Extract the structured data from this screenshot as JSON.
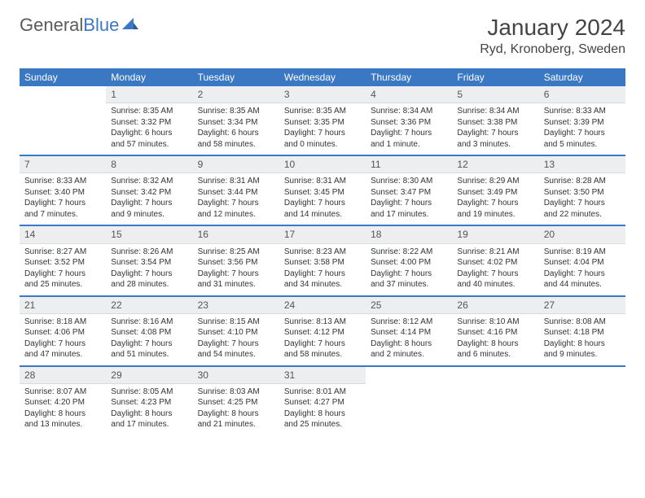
{
  "logo": {
    "part1": "General",
    "part2": "Blue"
  },
  "title": "January 2024",
  "location": "Ryd, Kronoberg, Sweden",
  "weekdays": [
    "Sunday",
    "Monday",
    "Tuesday",
    "Wednesday",
    "Thursday",
    "Friday",
    "Saturday"
  ],
  "colors": {
    "header_bg": "#3b78c4",
    "header_text": "#ffffff",
    "daynum_bg": "#eceeef",
    "row_sep": "#3b78c4",
    "logo_gray": "#5a5a5a",
    "logo_blue": "#3b78c4"
  },
  "weeks": [
    [
      {
        "n": "",
        "lines": []
      },
      {
        "n": "1",
        "lines": [
          "Sunrise: 8:35 AM",
          "Sunset: 3:32 PM",
          "Daylight: 6 hours",
          "and 57 minutes."
        ]
      },
      {
        "n": "2",
        "lines": [
          "Sunrise: 8:35 AM",
          "Sunset: 3:34 PM",
          "Daylight: 6 hours",
          "and 58 minutes."
        ]
      },
      {
        "n": "3",
        "lines": [
          "Sunrise: 8:35 AM",
          "Sunset: 3:35 PM",
          "Daylight: 7 hours",
          "and 0 minutes."
        ]
      },
      {
        "n": "4",
        "lines": [
          "Sunrise: 8:34 AM",
          "Sunset: 3:36 PM",
          "Daylight: 7 hours",
          "and 1 minute."
        ]
      },
      {
        "n": "5",
        "lines": [
          "Sunrise: 8:34 AM",
          "Sunset: 3:38 PM",
          "Daylight: 7 hours",
          "and 3 minutes."
        ]
      },
      {
        "n": "6",
        "lines": [
          "Sunrise: 8:33 AM",
          "Sunset: 3:39 PM",
          "Daylight: 7 hours",
          "and 5 minutes."
        ]
      }
    ],
    [
      {
        "n": "7",
        "lines": [
          "Sunrise: 8:33 AM",
          "Sunset: 3:40 PM",
          "Daylight: 7 hours",
          "and 7 minutes."
        ]
      },
      {
        "n": "8",
        "lines": [
          "Sunrise: 8:32 AM",
          "Sunset: 3:42 PM",
          "Daylight: 7 hours",
          "and 9 minutes."
        ]
      },
      {
        "n": "9",
        "lines": [
          "Sunrise: 8:31 AM",
          "Sunset: 3:44 PM",
          "Daylight: 7 hours",
          "and 12 minutes."
        ]
      },
      {
        "n": "10",
        "lines": [
          "Sunrise: 8:31 AM",
          "Sunset: 3:45 PM",
          "Daylight: 7 hours",
          "and 14 minutes."
        ]
      },
      {
        "n": "11",
        "lines": [
          "Sunrise: 8:30 AM",
          "Sunset: 3:47 PM",
          "Daylight: 7 hours",
          "and 17 minutes."
        ]
      },
      {
        "n": "12",
        "lines": [
          "Sunrise: 8:29 AM",
          "Sunset: 3:49 PM",
          "Daylight: 7 hours",
          "and 19 minutes."
        ]
      },
      {
        "n": "13",
        "lines": [
          "Sunrise: 8:28 AM",
          "Sunset: 3:50 PM",
          "Daylight: 7 hours",
          "and 22 minutes."
        ]
      }
    ],
    [
      {
        "n": "14",
        "lines": [
          "Sunrise: 8:27 AM",
          "Sunset: 3:52 PM",
          "Daylight: 7 hours",
          "and 25 minutes."
        ]
      },
      {
        "n": "15",
        "lines": [
          "Sunrise: 8:26 AM",
          "Sunset: 3:54 PM",
          "Daylight: 7 hours",
          "and 28 minutes."
        ]
      },
      {
        "n": "16",
        "lines": [
          "Sunrise: 8:25 AM",
          "Sunset: 3:56 PM",
          "Daylight: 7 hours",
          "and 31 minutes."
        ]
      },
      {
        "n": "17",
        "lines": [
          "Sunrise: 8:23 AM",
          "Sunset: 3:58 PM",
          "Daylight: 7 hours",
          "and 34 minutes."
        ]
      },
      {
        "n": "18",
        "lines": [
          "Sunrise: 8:22 AM",
          "Sunset: 4:00 PM",
          "Daylight: 7 hours",
          "and 37 minutes."
        ]
      },
      {
        "n": "19",
        "lines": [
          "Sunrise: 8:21 AM",
          "Sunset: 4:02 PM",
          "Daylight: 7 hours",
          "and 40 minutes."
        ]
      },
      {
        "n": "20",
        "lines": [
          "Sunrise: 8:19 AM",
          "Sunset: 4:04 PM",
          "Daylight: 7 hours",
          "and 44 minutes."
        ]
      }
    ],
    [
      {
        "n": "21",
        "lines": [
          "Sunrise: 8:18 AM",
          "Sunset: 4:06 PM",
          "Daylight: 7 hours",
          "and 47 minutes."
        ]
      },
      {
        "n": "22",
        "lines": [
          "Sunrise: 8:16 AM",
          "Sunset: 4:08 PM",
          "Daylight: 7 hours",
          "and 51 minutes."
        ]
      },
      {
        "n": "23",
        "lines": [
          "Sunrise: 8:15 AM",
          "Sunset: 4:10 PM",
          "Daylight: 7 hours",
          "and 54 minutes."
        ]
      },
      {
        "n": "24",
        "lines": [
          "Sunrise: 8:13 AM",
          "Sunset: 4:12 PM",
          "Daylight: 7 hours",
          "and 58 minutes."
        ]
      },
      {
        "n": "25",
        "lines": [
          "Sunrise: 8:12 AM",
          "Sunset: 4:14 PM",
          "Daylight: 8 hours",
          "and 2 minutes."
        ]
      },
      {
        "n": "26",
        "lines": [
          "Sunrise: 8:10 AM",
          "Sunset: 4:16 PM",
          "Daylight: 8 hours",
          "and 6 minutes."
        ]
      },
      {
        "n": "27",
        "lines": [
          "Sunrise: 8:08 AM",
          "Sunset: 4:18 PM",
          "Daylight: 8 hours",
          "and 9 minutes."
        ]
      }
    ],
    [
      {
        "n": "28",
        "lines": [
          "Sunrise: 8:07 AM",
          "Sunset: 4:20 PM",
          "Daylight: 8 hours",
          "and 13 minutes."
        ]
      },
      {
        "n": "29",
        "lines": [
          "Sunrise: 8:05 AM",
          "Sunset: 4:23 PM",
          "Daylight: 8 hours",
          "and 17 minutes."
        ]
      },
      {
        "n": "30",
        "lines": [
          "Sunrise: 8:03 AM",
          "Sunset: 4:25 PM",
          "Daylight: 8 hours",
          "and 21 minutes."
        ]
      },
      {
        "n": "31",
        "lines": [
          "Sunrise: 8:01 AM",
          "Sunset: 4:27 PM",
          "Daylight: 8 hours",
          "and 25 minutes."
        ]
      },
      {
        "n": "",
        "lines": []
      },
      {
        "n": "",
        "lines": []
      },
      {
        "n": "",
        "lines": []
      }
    ]
  ]
}
